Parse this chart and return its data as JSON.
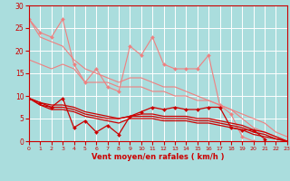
{
  "x": [
    0,
    1,
    2,
    3,
    4,
    5,
    6,
    7,
    8,
    9,
    10,
    11,
    12,
    13,
    14,
    15,
    16,
    17,
    18,
    19,
    20,
    21,
    22,
    23
  ],
  "lines": [
    {
      "y": [
        27,
        24,
        23,
        27,
        17,
        13,
        16,
        12,
        11,
        21,
        19,
        23,
        17,
        16,
        16,
        16,
        19,
        8,
        6,
        1,
        0,
        null,
        null,
        null
      ],
      "color": "#f08080",
      "lw": 0.8,
      "marker": "D",
      "ms": 2.0
    },
    {
      "y": [
        27,
        23,
        22,
        21,
        18,
        16,
        15,
        14,
        13,
        14,
        14,
        13,
        12,
        12,
        11,
        10,
        9,
        8,
        7,
        5,
        3,
        2,
        1,
        0
      ],
      "color": "#f08080",
      "lw": 0.8,
      "marker": null,
      "ms": 0
    },
    {
      "y": [
        18,
        17,
        16,
        17,
        16,
        13,
        13,
        13,
        12,
        12,
        12,
        11,
        11,
        10,
        10,
        9,
        9,
        8,
        7,
        6,
        5,
        4,
        2,
        1
      ],
      "color": "#f08080",
      "lw": 0.8,
      "marker": null,
      "ms": 0
    },
    {
      "y": [
        9.5,
        8.5,
        7.5,
        9.5,
        3,
        4.5,
        2,
        3.5,
        1.5,
        5.5,
        6.5,
        7.5,
        7,
        7.5,
        7,
        7,
        7.5,
        7.5,
        3,
        2.5,
        2.5,
        0.5,
        null,
        null
      ],
      "color": "#cc0000",
      "lw": 0.9,
      "marker": "D",
      "ms": 2.0
    },
    {
      "y": [
        9.5,
        8.5,
        8.0,
        8.0,
        7.5,
        6.5,
        6.0,
        5.5,
        5.0,
        5.5,
        6.0,
        6.0,
        5.5,
        5.5,
        5.5,
        5.0,
        5.0,
        4.5,
        4.0,
        3.5,
        2.5,
        2.0,
        1.0,
        0.0
      ],
      "color": "#cc0000",
      "lw": 0.9,
      "marker": null,
      "ms": 0
    },
    {
      "y": [
        9.5,
        8.0,
        7.5,
        7.5,
        7.0,
        6.0,
        5.5,
        5.0,
        5.0,
        5.5,
        5.5,
        5.5,
        5.0,
        5.0,
        5.0,
        4.5,
        4.5,
        4.0,
        3.5,
        3.0,
        2.0,
        1.5,
        0.5,
        0.0
      ],
      "color": "#cc0000",
      "lw": 0.9,
      "marker": null,
      "ms": 0
    },
    {
      "y": [
        9.5,
        8.0,
        7.0,
        7.0,
        6.5,
        5.5,
        5.0,
        4.5,
        4.0,
        5.0,
        5.0,
        5.0,
        4.5,
        4.5,
        4.5,
        4.0,
        4.0,
        3.5,
        3.0,
        2.5,
        1.5,
        1.0,
        0.5,
        0.0
      ],
      "color": "#cc0000",
      "lw": 0.9,
      "marker": null,
      "ms": 0
    }
  ],
  "xlim": [
    0,
    23
  ],
  "ylim": [
    0,
    30
  ],
  "yticks": [
    0,
    5,
    10,
    15,
    20,
    25,
    30
  ],
  "xticks": [
    0,
    1,
    2,
    3,
    4,
    5,
    6,
    7,
    8,
    9,
    10,
    11,
    12,
    13,
    14,
    15,
    16,
    17,
    18,
    19,
    20,
    21,
    22,
    23
  ],
  "xlabel": "Vent moyen/en rafales ( km/h )",
  "bg_color": "#aadddd",
  "grid_color": "#ffffff",
  "axis_color": "#cc0000",
  "label_color": "#cc0000",
  "tick_color": "#cc0000"
}
